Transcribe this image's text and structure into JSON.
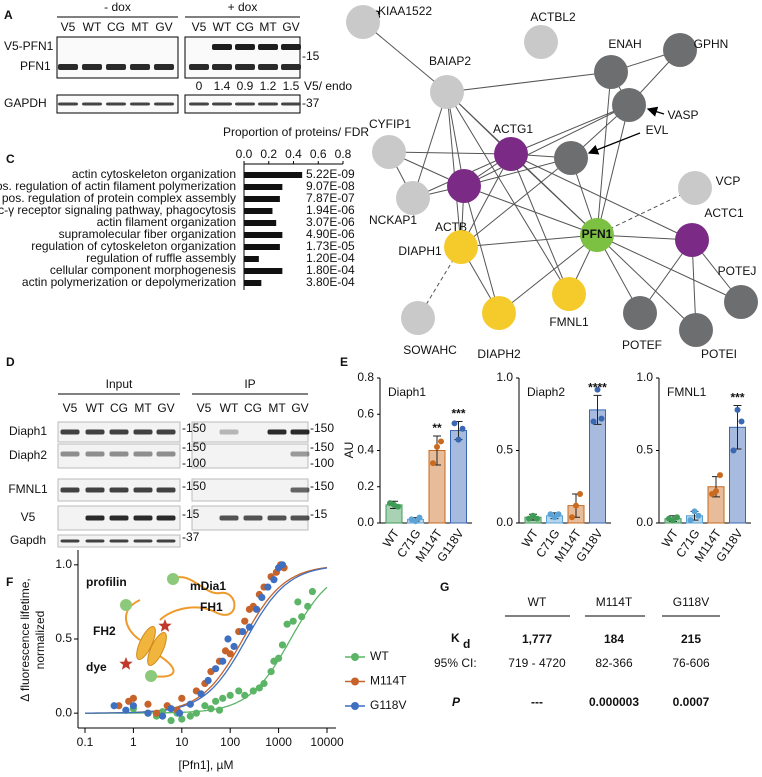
{
  "panel_labels": [
    "A",
    "B",
    "C",
    "D",
    "E",
    "F",
    "G"
  ],
  "panel_a": {
    "groups": [
      "- dox",
      "+ dox"
    ],
    "lanes": [
      "V5",
      "WT",
      "CG",
      "MT",
      "GV"
    ],
    "rows": [
      "V5-PFN1",
      "PFN1",
      "GAPDH"
    ],
    "markers": [
      "-15",
      "-37"
    ],
    "ratio_label": "V5/ endo",
    "ratios": [
      0,
      1.4,
      0.9,
      1.2,
      1.5
    ]
  },
  "panel_b": {
    "nodes": [
      {
        "label": "KIAA1522",
        "color": "#c9c9c9"
      },
      {
        "label": "ACTBL2",
        "color": "#c9c9c9"
      },
      {
        "label": "ENAH",
        "color": "#6d6e70"
      },
      {
        "label": "GPHN",
        "color": "#6d6e70"
      },
      {
        "label": "BAIAP2",
        "color": "#c9c9c9"
      },
      {
        "label": "VASP",
        "color": "#6d6e70"
      },
      {
        "label": "CYFIP1",
        "color": "#c9c9c9"
      },
      {
        "label": "ACTG1",
        "color": "#7b2a86"
      },
      {
        "label": "EVL",
        "color": "#6d6e70"
      },
      {
        "label": "VCP",
        "color": "#c9c9c9"
      },
      {
        "label": "ACTB",
        "color": "#7b2a86"
      },
      {
        "label": "NCKAP1",
        "color": "#c9c9c9"
      },
      {
        "label": "PFN1",
        "color": "#7dc143"
      },
      {
        "label": "ACTC1",
        "color": "#7b2a86"
      },
      {
        "label": "DIAPH1",
        "color": "#f5cb2c"
      },
      {
        "label": "POTEJ",
        "color": "#6d6e70"
      },
      {
        "label": "SOWAHC",
        "color": "#c9c9c9"
      },
      {
        "label": "DIAPH2",
        "color": "#f5cb2c"
      },
      {
        "label": "FMNL1",
        "color": "#f5cb2c"
      },
      {
        "label": "POTEF",
        "color": "#6d6e70"
      },
      {
        "label": "POTEI",
        "color": "#6d6e70"
      }
    ]
  },
  "chart_data": [
    {
      "type": "hbar",
      "title": "Proportion of proteins/ FDR",
      "categories": [
        "actin cytoskeleton organization",
        "pos. regulation of actin filament polymerization",
        "pos. regulation of protein complex assembly",
        "Fc-γ receptor signaling pathway, phagocytosis",
        "actin filament organization",
        "supramolecular fiber organization",
        "regulation of cytoskeleton organization",
        "regulation of ruffle assembly",
        "cellular component morphogenesis",
        "actin polymerization or depolymerization"
      ],
      "values": [
        0.47,
        0.31,
        0.29,
        0.23,
        0.26,
        0.31,
        0.29,
        0.12,
        0.31,
        0.14
      ],
      "fdr": [
        "5.22E-09",
        "9.07E-08",
        "7.87E-07",
        "1.94E-06",
        "3.07E-06",
        "4.90E-06",
        "1.73E-05",
        "1.20E-04",
        "1.80E-04",
        "3.80E-04"
      ],
      "color": "#111111",
      "xlim": [
        0,
        0.8
      ],
      "xticks": [
        {
          "value": 0,
          "label": "0.0"
        },
        {
          "value": 0.2,
          "label": "0.2"
        },
        {
          "value": 0.4,
          "label": "0.4"
        },
        {
          "value": 0.6,
          "label": "0.6"
        },
        {
          "value": 0.8,
          "label": "0.8"
        }
      ]
    },
    {
      "type": "bar",
      "title": "Diaph1",
      "ylabel": "AU",
      "categories": [
        "WT",
        "C71G",
        "M114T",
        "G118V"
      ],
      "values": [
        0.1,
        0.02,
        0.4,
        0.51
      ],
      "errors": [
        0.02,
        0.01,
        0.08,
        0.05
      ],
      "points": [
        [
          0.11,
          0.1,
          0.09
        ],
        [
          0.02,
          0.01,
          0.03
        ],
        [
          0.33,
          0.42,
          0.45
        ],
        [
          0.55,
          0.46,
          0.52
        ]
      ],
      "colors": [
        "#3f9b57",
        "#5ba3d6",
        "#c96a1e",
        "#3a68b3"
      ],
      "annotations": [
        null,
        null,
        "**",
        "***"
      ],
      "ylim": [
        0,
        0.8
      ],
      "yticks": [
        {
          "value": 0,
          "label": "0.0"
        },
        {
          "value": 0.2,
          "label": "0.2"
        },
        {
          "value": 0.4,
          "label": "0.4"
        },
        {
          "value": 0.6,
          "label": "0.6"
        },
        {
          "value": 0.8,
          "label": "0.8"
        }
      ]
    },
    {
      "type": "bar",
      "title": "Diaph2",
      "categories": [
        "WT",
        "C71G",
        "M114T",
        "G118V"
      ],
      "values": [
        0.04,
        0.05,
        0.12,
        0.78
      ],
      "errors": [
        0.02,
        0.02,
        0.08,
        0.1
      ],
      "points": [
        [
          0.03,
          0.05,
          0.03
        ],
        [
          0.06,
          0.04,
          0.06
        ],
        [
          0.04,
          0.12,
          0.2
        ],
        [
          0.7,
          0.92,
          0.72
        ]
      ],
      "colors": [
        "#3f9b57",
        "#5ba3d6",
        "#c96a1e",
        "#3a68b3"
      ],
      "annotations": [
        null,
        null,
        null,
        "****"
      ],
      "ylim": [
        0,
        1.0
      ],
      "yticks": [
        {
          "value": 0,
          "label": "0.0"
        },
        {
          "value": 0.5,
          "label": "0.5"
        },
        {
          "value": 1,
          "label": "1.0"
        }
      ]
    },
    {
      "type": "bar",
      "title": "FMNL1",
      "categories": [
        "WT",
        "C71G",
        "M114T",
        "G118V"
      ],
      "values": [
        0.03,
        0.05,
        0.25,
        0.66
      ],
      "errors": [
        0.02,
        0.03,
        0.07,
        0.15
      ],
      "points": [
        [
          0.03,
          0.02,
          0.04
        ],
        [
          0.02,
          0.08,
          0.05
        ],
        [
          0.2,
          0.22,
          0.33
        ],
        [
          0.5,
          0.78,
          0.7
        ]
      ],
      "colors": [
        "#3f9b57",
        "#5ba3d6",
        "#c96a1e",
        "#3a68b3"
      ],
      "annotations": [
        null,
        null,
        null,
        "***"
      ],
      "ylim": [
        0,
        1.0
      ],
      "yticks": [
        {
          "value": 0,
          "label": "0.0"
        },
        {
          "value": 0.5,
          "label": "0.5"
        },
        {
          "value": 1,
          "label": "1.0"
        }
      ]
    },
    {
      "type": "scatter",
      "xlabel": "[Pfn1], µM",
      "ylabel": [
        "Δ fluorescence lifetime,",
        "normalized"
      ],
      "log_x": true,
      "xlim": [
        0.1,
        10000
      ],
      "xticks": [
        0.1,
        1,
        10,
        100,
        1000,
        10000
      ],
      "ylim": [
        -0.1,
        1.1
      ],
      "yticks": [
        {
          "value": 0,
          "label": "0.0"
        },
        {
          "value": 0.5,
          "label": "0.5"
        },
        {
          "value": 1,
          "label": "1.0"
        }
      ],
      "annotations": {
        "profilin": "profilin",
        "mdia1": "mDia1",
        "fh1": "FH1",
        "fh2": "FH2",
        "dye": "dye"
      },
      "series": [
        {
          "name": "WT",
          "color": "#5cb567",
          "fit_kd": 1777,
          "x": [
            1,
            2,
            3,
            4,
            6,
            8,
            10,
            15,
            20,
            30,
            40,
            50,
            60,
            70,
            100,
            150,
            200,
            300,
            400,
            500,
            700,
            800,
            1000,
            1200,
            1500,
            2000,
            2500,
            3000,
            4000,
            5000
          ],
          "values": [
            0.03,
            0.0,
            -0.02,
            0.01,
            -0.05,
            0.0,
            -0.04,
            -0.02,
            0.0,
            0.05,
            0.03,
            0.08,
            0.02,
            0.1,
            0.12,
            0.15,
            0.12,
            0.15,
            0.17,
            0.2,
            0.28,
            0.35,
            0.37,
            0.46,
            0.6,
            0.62,
            0.75,
            0.65,
            0.72,
            0.82
          ]
        },
        {
          "name": "M114T",
          "color": "#c6632a",
          "fit_kd": 184,
          "x": [
            0.5,
            0.8,
            1,
            2,
            3,
            5,
            8,
            10,
            20,
            30,
            40,
            60,
            80,
            100,
            150,
            200,
            250,
            300,
            400,
            500,
            700,
            900,
            1100,
            1300
          ],
          "values": [
            0.05,
            0.08,
            0.1,
            0.06,
            0.0,
            0.05,
            0.02,
            0.1,
            0.15,
            0.2,
            0.28,
            0.35,
            0.42,
            0.4,
            0.55,
            0.62,
            0.7,
            0.72,
            0.8,
            0.85,
            0.92,
            0.95,
            1.0,
            0.98
          ]
        },
        {
          "name": "G118V",
          "color": "#3f6fc0",
          "fit_kd": 215,
          "x": [
            0.4,
            0.7,
            1,
            2,
            4,
            6,
            9,
            15,
            25,
            35,
            50,
            70,
            90,
            120,
            180,
            250,
            350,
            450,
            600,
            800,
            1000,
            1200
          ],
          "values": [
            0.05,
            0.02,
            0.05,
            0.0,
            -0.02,
            0.03,
            0.0,
            0.06,
            0.13,
            0.22,
            0.3,
            0.35,
            0.5,
            0.45,
            0.55,
            0.58,
            0.7,
            0.78,
            0.85,
            0.9,
            0.98,
            1.0
          ]
        }
      ]
    }
  ],
  "panel_d": {
    "groups": [
      "Input",
      "IP"
    ],
    "lanes": [
      "V5",
      "WT",
      "CG",
      "MT",
      "GV"
    ],
    "rows": [
      "Diaph1",
      "Diaph2",
      "FMNL1",
      "V5",
      "Gapdh"
    ],
    "input_markers": [
      [
        "-150"
      ],
      [
        "-150",
        "-100"
      ],
      [
        "-150"
      ],
      [
        "-15"
      ],
      [
        "-37"
      ]
    ],
    "ip_markers": [
      [
        "-150"
      ],
      [
        "-150",
        "-100"
      ],
      [
        "-150"
      ],
      [
        "-15"
      ]
    ]
  },
  "panel_g": {
    "columns": [
      "WT",
      "M114T",
      "G118V"
    ],
    "kd": {
      "symbol": "K",
      "sub": "d",
      "values": [
        "1,777",
        "184",
        "215"
      ]
    },
    "ci": {
      "label": "95% CI:",
      "values": [
        "719 - 4720",
        "82-366",
        "76-606"
      ]
    },
    "p": {
      "label": "P",
      "values": [
        "---",
        "0.000003",
        "0.0007"
      ]
    }
  }
}
